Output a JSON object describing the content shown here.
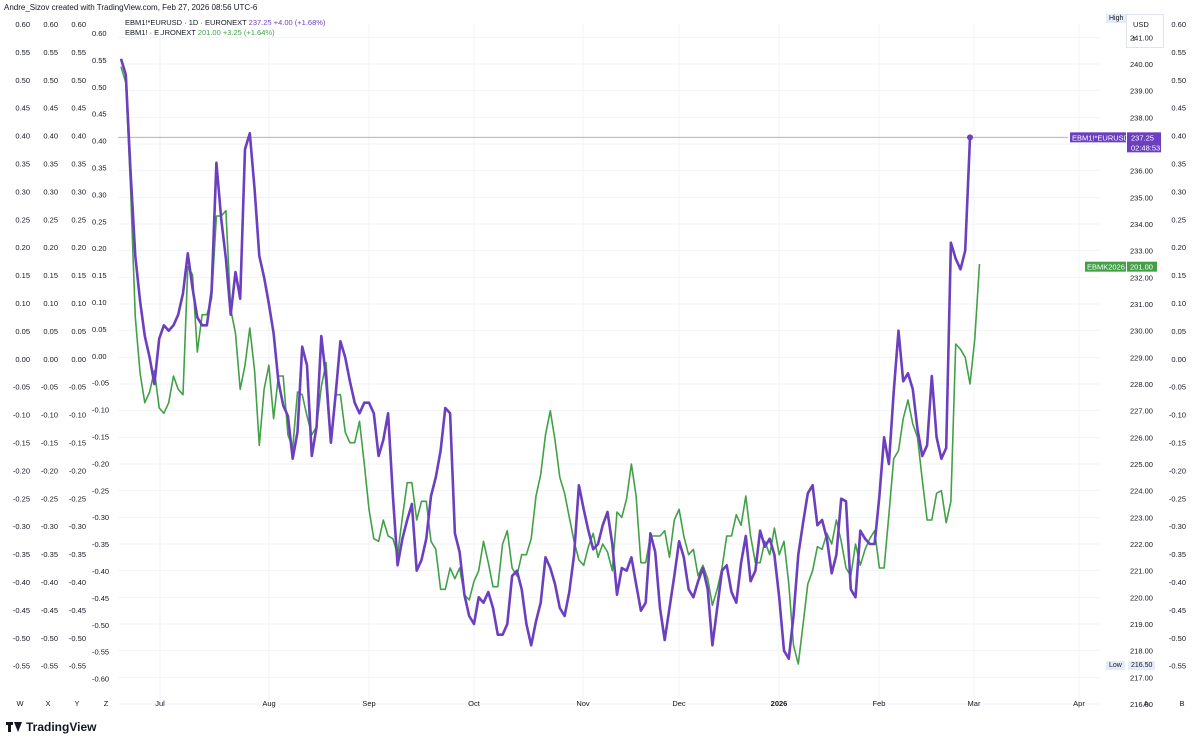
{
  "header": {
    "credit": "Andre_Sizov created with TradingView.com, Feb 27, 2026 08:56 UTC-6"
  },
  "legend": {
    "row1_symbol": "EBM1!*EURUSD · 1D · EURONEXT",
    "row1_value": "237.25",
    "row1_change": "+4.00 (+1.68%)",
    "row2_symbol": "EBM1! · EURONEXT",
    "row2_value": "201.00",
    "row2_change": "+3.25 (+1.64%)"
  },
  "right_panel": {
    "high_label": "High",
    "low_label": "Low",
    "low_value": "216.50",
    "unit_label": "USD",
    "unit_sub": "t"
  },
  "footer": {
    "brand": "TradingView"
  },
  "colors": {
    "purple": "#6b3fbf",
    "green": "#43a047",
    "grid": "#f0f3fa",
    "axis_text": "#131722"
  },
  "chart_data": {
    "type": "line",
    "x_labels": [
      "Jul",
      "Aug",
      "Sep",
      "Oct",
      "Nov",
      "Dec",
      "2026",
      "Feb",
      "Mar",
      "Apr"
    ],
    "left_scale_letters": [
      "W",
      "X",
      "Y",
      "Z"
    ],
    "left_scale_ticks": [
      "0.60",
      "0.55",
      "0.50",
      "0.45",
      "0.40",
      "0.35",
      "0.30",
      "0.25",
      "0.20",
      "0.15",
      "0.10",
      "0.05",
      "0.00",
      "-0.05",
      "-0.10",
      "-0.15",
      "-0.20",
      "-0.25",
      "-0.30",
      "-0.35",
      "-0.40",
      "-0.45",
      "-0.50",
      "-0.55"
    ],
    "inner_scale_ticks": [
      "0.60",
      "0.55",
      "0.50",
      "0.45",
      "0.40",
      "0.35",
      "0.30",
      "0.25",
      "0.20",
      "0.15",
      "0.10",
      "0.05",
      "0.00",
      "-0.05",
      "-0.10",
      "-0.15",
      "-0.20",
      "-0.25",
      "-0.30",
      "-0.35",
      "-0.40",
      "-0.45",
      "-0.50",
      "-0.55",
      "-0.60"
    ],
    "right_price_ticks": [
      "241.00",
      "240.00",
      "239.00",
      "238.00",
      "237.00",
      "236.00",
      "235.00",
      "234.00",
      "233.00",
      "232.00",
      "231.00",
      "230.00",
      "229.00",
      "228.00",
      "227.00",
      "226.00",
      "225.00",
      "224.00",
      "223.00",
      "222.00",
      "221.00",
      "220.00",
      "219.00",
      "218.00",
      "217.00",
      "216.00"
    ],
    "right_scale_ticks": [
      "0.60",
      "0.55",
      "0.50",
      "0.45",
      "0.40",
      "0.35",
      "0.30",
      "0.25",
      "0.20",
      "0.15",
      "0.10",
      "0.05",
      "0.00",
      "-0.05",
      "-0.10",
      "-0.15",
      "-0.20",
      "-0.25",
      "-0.30",
      "-0.35",
      "-0.40",
      "-0.45",
      "-0.50",
      "-0.55"
    ],
    "right_letters": [
      "A",
      "B"
    ],
    "y_range": [
      216.0,
      241.5
    ],
    "series": [
      {
        "name": "EBM1!*EURUSD",
        "color": "#6b3fbf",
        "last_label": "237.25",
        "timer": "02:48:53",
        "values": [
          240.2,
          239.6,
          236.0,
          232.8,
          231.1,
          229.8,
          229.0,
          228.0,
          229.7,
          230.2,
          230.0,
          230.2,
          230.6,
          231.4,
          232.9,
          231.6,
          230.5,
          230.2,
          230.2,
          231.5,
          236.3,
          234.2,
          232.7,
          230.6,
          232.2,
          231.2,
          236.8,
          237.4,
          235.3,
          232.8,
          232.0,
          231.0,
          229.9,
          228.1,
          227.2,
          226.8,
          225.2,
          226.2,
          229.4,
          228.7,
          225.3,
          226.4,
          229.8,
          228.2,
          225.8,
          227.6,
          229.6,
          229.0,
          228.1,
          227.3,
          226.9,
          227.3,
          227.3,
          226.9,
          225.3,
          225.9,
          226.9,
          223.8,
          221.2,
          222.2,
          222.9,
          223.5,
          221.0,
          221.4,
          222.2,
          223.8,
          224.5,
          225.5,
          227.1,
          226.9,
          222.4,
          221.7,
          220.1,
          219.3,
          219.0,
          220.0,
          219.8,
          220.2,
          219.6,
          218.6,
          218.6,
          219.0,
          220.8,
          221.0,
          220.3,
          219.0,
          218.2,
          219.1,
          219.8,
          221.5,
          221.1,
          220.5,
          219.6,
          219.3,
          220.2,
          221.6,
          224.2,
          223.3,
          222.5,
          221.8,
          222.0,
          222.7,
          223.2,
          222.0,
          220.1,
          221.1,
          221.0,
          221.5,
          220.5,
          219.5,
          219.8,
          222.4,
          221.7,
          219.6,
          218.4,
          219.6,
          220.8,
          222.1,
          221.5,
          220.3,
          220.0,
          220.6,
          221.1,
          220.3,
          218.2,
          219.6,
          221.0,
          221.2,
          220.2,
          219.8,
          221.3,
          222.3,
          220.6,
          221.0,
          222.5,
          221.9,
          222.2,
          221.6,
          220.0,
          218.0,
          217.7,
          219.3,
          221.6,
          222.8,
          223.9,
          224.2,
          222.7,
          222.9,
          222.2,
          220.9,
          221.6,
          223.7,
          223.6,
          220.3,
          220.0,
          222.5,
          222.2,
          222.0,
          222.0,
          223.8,
          226.0,
          225.0,
          227.7,
          230.0,
          228.1,
          228.4,
          227.8,
          226.3,
          225.3,
          225.7,
          228.3,
          226.0,
          225.2,
          225.6,
          233.3,
          232.7,
          232.3,
          233.0,
          237.25
        ]
      },
      {
        "name": "EBMK2026",
        "color": "#43a047",
        "last_label": "201.00",
        "values": [
          239.9,
          239.3,
          235.4,
          230.5,
          228.4,
          227.3,
          227.7,
          228.5,
          227.1,
          226.9,
          227.3,
          228.3,
          227.8,
          227.6,
          232.4,
          232.1,
          229.2,
          230.6,
          230.6,
          231.2,
          234.3,
          234.3,
          234.5,
          230.8,
          229.9,
          227.8,
          228.7,
          230.1,
          228.5,
          225.7,
          227.8,
          228.7,
          226.7,
          228.3,
          228.3,
          226.1,
          225.6,
          227.7,
          227.6,
          226.8,
          226.1,
          226.4,
          227.9,
          228.8,
          225.8,
          227.6,
          227.6,
          226.2,
          225.8,
          225.8,
          226.6,
          225.0,
          223.3,
          222.2,
          222.1,
          222.9,
          222.3,
          222.2,
          221.6,
          223.0,
          224.3,
          224.3,
          222.9,
          223.6,
          223.6,
          222.1,
          221.8,
          220.3,
          220.3,
          221.1,
          220.7,
          221.1,
          220.1,
          219.9,
          220.6,
          221.0,
          222.1,
          221.3,
          220.4,
          220.4,
          222.0,
          222.5,
          221.1,
          220.8,
          221.6,
          221.6,
          222.2,
          223.8,
          224.6,
          226.1,
          227.0,
          225.9,
          224.5,
          223.9,
          223.0,
          222.1,
          221.4,
          221.2,
          221.9,
          222.4,
          221.5,
          222.0,
          221.7,
          221.0,
          223.2,
          223.0,
          223.7,
          225.0,
          223.8,
          221.3,
          221.3,
          222.3,
          222.3,
          222.3,
          222.5,
          221.5,
          222.9,
          223.3,
          222.3,
          221.6,
          221.8,
          220.8,
          221.2,
          220.7,
          219.7,
          220.3,
          221.1,
          222.3,
          222.3,
          223.1,
          222.7,
          223.8,
          222.3,
          221.3,
          221.3,
          222.1,
          221.6,
          222.6,
          221.6,
          222.1,
          220.5,
          218.2,
          217.5,
          219.0,
          220.5,
          221.0,
          221.9,
          221.8,
          222.4,
          222.0,
          222.9,
          222.1,
          221.1,
          220.8,
          222.0,
          221.2,
          221.8,
          222.2,
          222.5,
          221.1,
          221.1,
          223.1,
          225.2,
          225.5,
          226.7,
          227.4,
          226.5,
          226.0,
          224.4,
          222.9,
          222.9,
          223.9,
          224.0,
          222.8,
          223.6,
          229.5,
          229.3,
          229.0,
          228.0,
          229.7,
          232.5
        ]
      }
    ],
    "green_label_value": 232.4,
    "price_line_value": 237.25
  }
}
